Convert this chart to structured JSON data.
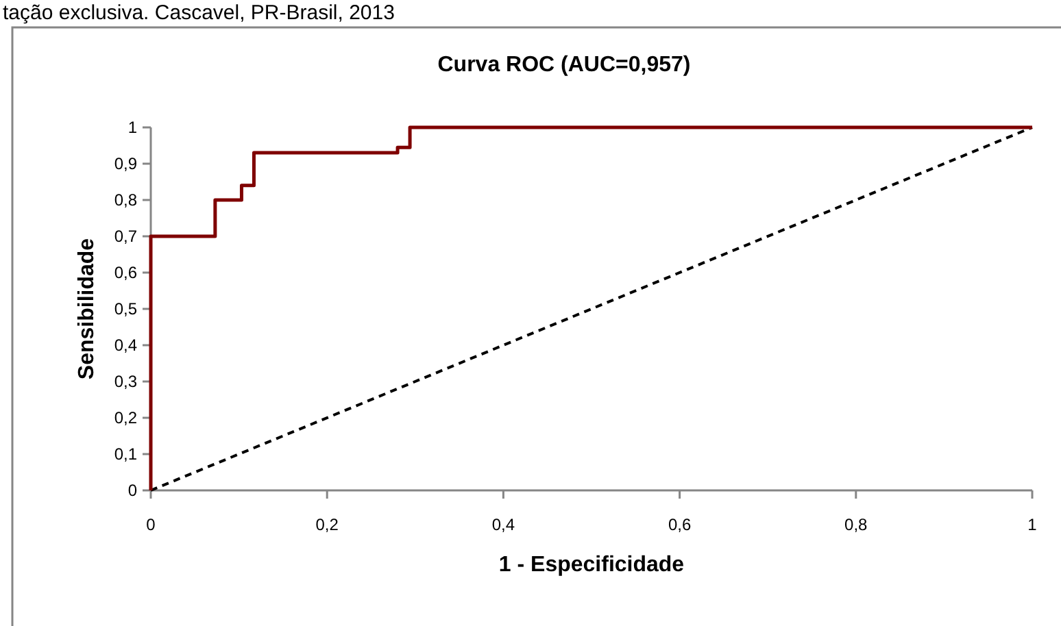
{
  "chart_data": {
    "type": "step",
    "title": "Curva ROC (AUC=0,957)",
    "xlabel": "1 - Especificidade",
    "ylabel": "Sensibilidade",
    "annotations": [
      "tação exclusiva. Cascavel, PR-Brasil, 2013"
    ],
    "series": [
      {
        "color": "#7f0000",
        "line_style": "solid",
        "x": [
          0,
          0,
          0.073,
          0.103,
          0.117,
          0.28,
          0.294,
          1
        ],
        "values": [
          0,
          0.7,
          0.8,
          0.84,
          0.93,
          0.945,
          1,
          1
        ]
      },
      {
        "type": "line",
        "color": "#000000",
        "line_style": "dashed",
        "x": [
          0,
          1
        ],
        "values": [
          0,
          1
        ]
      }
    ],
    "xlim": [
      0,
      1
    ],
    "xticks": [
      0,
      {
        "value": 0.2,
        "label": "0,2"
      },
      {
        "value": 0.4,
        "label": "0,4"
      },
      {
        "value": 0.6,
        "label": "0,6"
      },
      {
        "value": 0.8,
        "label": "0,8"
      },
      1
    ],
    "ylim": [
      0,
      1
    ],
    "yticks": [
      0,
      {
        "value": 0.1,
        "label": "0,1"
      },
      {
        "value": 0.2,
        "label": "0,2"
      },
      {
        "value": 0.3,
        "label": "0,3"
      },
      {
        "value": 0.4,
        "label": "0,4"
      },
      {
        "value": 0.5,
        "label": "0,5"
      },
      {
        "value": 0.6,
        "label": "0,6"
      },
      {
        "value": 0.7,
        "label": "0,7"
      },
      {
        "value": 0.8,
        "label": "0,8"
      },
      {
        "value": 0.9,
        "label": "0,9"
      },
      1
    ],
    "grid": false,
    "marker": "none"
  }
}
